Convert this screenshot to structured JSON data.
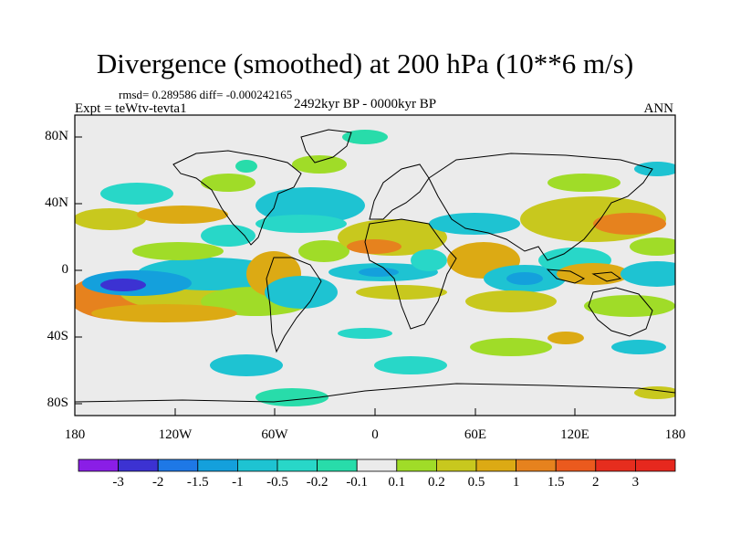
{
  "title": "Divergence (smoothed) at 200 hPa (10**6 m/s)",
  "stats": "rmsd= 0.289586  diff= -0.000242165",
  "experiment": "Expt = teWtv-tevta1",
  "period": "2492kyr BP - 0000kyr BP",
  "season": "ANN",
  "y_ticks": [
    "80N",
    "40N",
    "0",
    "40S",
    "80S"
  ],
  "x_ticks": [
    "180",
    "120W",
    "60W",
    "0",
    "60E",
    "120E",
    "180"
  ],
  "colorbar": {
    "labels": [
      "-3",
      "-2",
      "-1.5",
      "-1",
      "-0.5",
      "-0.2",
      "-0.1",
      "0.1",
      "0.2",
      "0.5",
      "1",
      "1.5",
      "2",
      "3"
    ],
    "colors": [
      "#8a1ee6",
      "#3c32d2",
      "#1e78e6",
      "#14a0dc",
      "#1ec3d2",
      "#28d7c8",
      "#28dcaa",
      "#ebebeb",
      "#a0dc28",
      "#c8c81e",
      "#dcaa14",
      "#e6821e",
      "#eb5a1e",
      "#e62d1e",
      "#e6281e"
    ]
  },
  "colors": {
    "land_bg": "#ebebeb",
    "ocean_bg": "#ebebeb"
  }
}
